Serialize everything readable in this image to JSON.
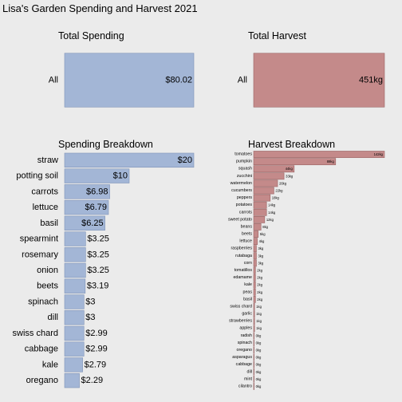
{
  "title": "Lisa's Garden Spending and Harvest 2021",
  "colors": {
    "background": "#ebebeb",
    "spending": "#a3b6d6",
    "spending_stroke": "#7e93b7",
    "harvest": "#c48a8a",
    "harvest_stroke": "#9b6464"
  },
  "chart_data": [
    {
      "type": "bar",
      "title": "Total Spending",
      "categories": [
        "All"
      ],
      "values": [
        80.02
      ],
      "labels": [
        "$80.02"
      ],
      "xlim": [
        0,
        80.02
      ]
    },
    {
      "type": "bar",
      "title": "Total Harvest",
      "categories": [
        "All"
      ],
      "values": [
        451
      ],
      "labels": [
        "451kg"
      ],
      "xlim": [
        0,
        451
      ]
    },
    {
      "type": "bar",
      "title": "Spending Breakdown",
      "categories": [
        "straw",
        "potting soil",
        "carrots",
        "lettuce",
        "basil",
        "spearmint",
        "rosemary",
        "onion",
        "beets",
        "spinach",
        "dill",
        "swiss chard",
        "cabbage",
        "kale",
        "oregano"
      ],
      "values": [
        20,
        10,
        6.98,
        6.79,
        6.25,
        3.25,
        3.25,
        3.25,
        3.19,
        3,
        3,
        2.99,
        2.99,
        2.79,
        2.29
      ],
      "labels": [
        "$20",
        "$10",
        "$6.98",
        "$6.79",
        "$6.25",
        "$3.25",
        "$3.25",
        "$3.25",
        "$3.19",
        "$3",
        "$3",
        "$2.99",
        "$2.99",
        "$2.79",
        "$2.29"
      ],
      "xlim": [
        0,
        20
      ]
    },
    {
      "type": "bar",
      "title": "Harvest Breakdown",
      "categories": [
        "tomatoes",
        "pumpkin",
        "squash",
        "zucchini",
        "watermelon",
        "cucumbers",
        "peppers",
        "potatoes",
        "carrots",
        "sweet potato",
        "beans",
        "beets",
        "lettuce",
        "raspberries",
        "rutabaga",
        "corn",
        "tomatillos",
        "edamame",
        "kale",
        "peas",
        "basil",
        "swiss chard",
        "garlic",
        "strawberries",
        "apples",
        "radish",
        "spinach",
        "oregano",
        "asparagus",
        "cabbage",
        "dill",
        "mint",
        "cilantro"
      ],
      "values": [
        142,
        89,
        44,
        33,
        26,
        22,
        18,
        14,
        14,
        12,
        8,
        5,
        4,
        3,
        3,
        3,
        2,
        2,
        2,
        2,
        2,
        1,
        1,
        1,
        1,
        0,
        0,
        0,
        0,
        0,
        0,
        0,
        0
      ],
      "labels": [
        "142kg",
        "89kg",
        "44kg",
        "33kg",
        "26kg",
        "22kg",
        "18kg",
        "14kg",
        "14kg",
        "12kg",
        "8kg",
        "5kg",
        "4kg",
        "3kg",
        "3kg",
        "3kg",
        "2kg",
        "2kg",
        "2kg",
        "2kg",
        "2kg",
        "1kg",
        "1kg",
        "1kg",
        "1kg",
        "0kg",
        "0kg",
        "0kg",
        "0kg",
        "0kg",
        "0kg",
        "0kg",
        "0kg"
      ],
      "xlim": [
        0,
        142
      ]
    }
  ]
}
